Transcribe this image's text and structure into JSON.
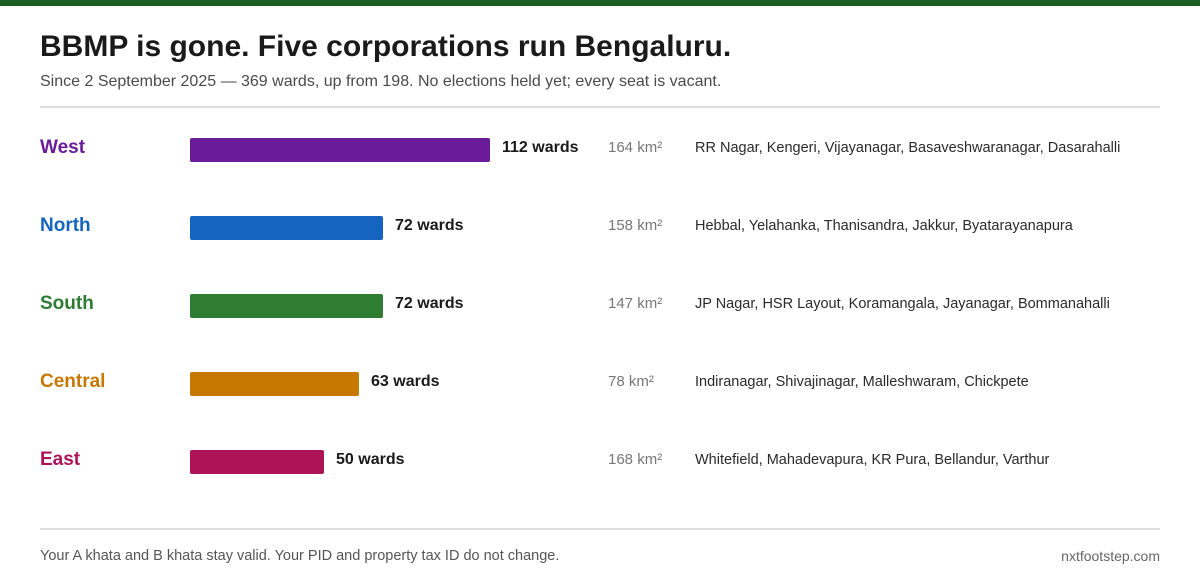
{
  "header": {
    "title": "BBMP is gone. Five corporations run Bengaluru.",
    "subtitle": "Since 2 September 2025 — 369 wards, up from 198. No elections held yet; every seat is vacant."
  },
  "chart_data": {
    "type": "bar",
    "orientation": "horizontal",
    "categories": [
      "West",
      "North",
      "South",
      "Central",
      "East"
    ],
    "values": [
      112,
      72,
      72,
      63,
      50
    ],
    "value_labels": [
      "112 wards",
      "72 wards",
      "72 wards",
      "63 wards",
      "50 wards"
    ],
    "areas": [
      "164 km²",
      "158 km²",
      "147 km²",
      "78 km²",
      "168 km²"
    ],
    "localities": [
      "RR Nagar, Kengeri, Vijayanagar, Basaveshwaranagar, Dasarahalli",
      "Hebbal, Yelahanka, Thanisandra, Jakkur, Byatarayanapura",
      "JP Nagar, HSR Layout, Koramangala, Jayanagar, Bommanahalli",
      "Indiranagar, Shivajinagar, Malleshwaram, Chickpete",
      "Whitefield, Mahadevapura, KR Pura, Bellandur, Varthur"
    ],
    "colors": [
      "#6a1b9a",
      "#1565c0",
      "#2e7d32",
      "#c77800",
      "#ad1457"
    ],
    "grid": false,
    "legend": "none"
  },
  "footer": {
    "note": "Your A khata and B khata stay valid. Your PID and property tax ID do not change.",
    "source": "nxtfootstep.com"
  },
  "theme": {
    "top_bar_color": "#1e5e22"
  }
}
